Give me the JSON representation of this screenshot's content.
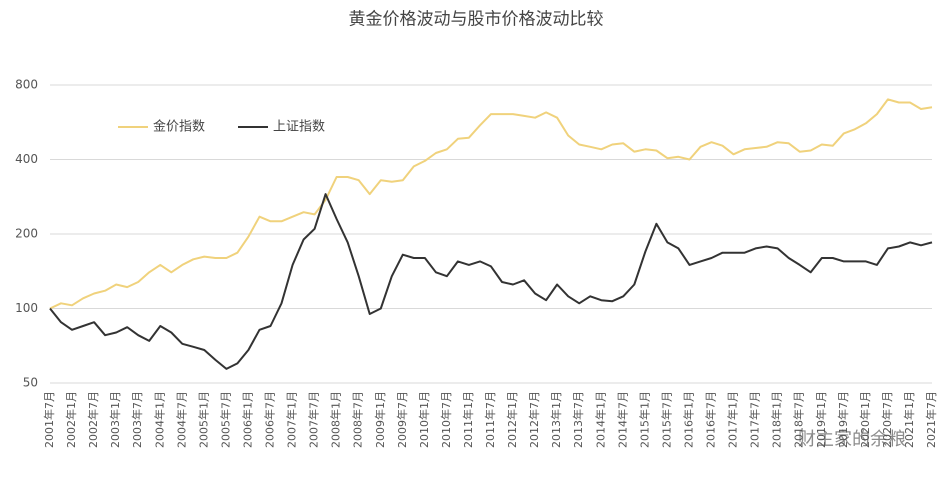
{
  "chart_data": {
    "type": "line",
    "title": "黄金价格波动与股市价格波动比较",
    "categories": [
      "2001年7月",
      null,
      "2002年1月",
      null,
      "2002年7月",
      null,
      "2003年1月",
      null,
      "2003年7月",
      null,
      "2004年1月",
      null,
      "2004年7月",
      null,
      "2005年1月",
      null,
      "2005年7月",
      null,
      "2006年1月",
      null,
      "2006年7月",
      null,
      "2007年1月",
      null,
      "2007年7月",
      null,
      "2008年1月",
      null,
      "2008年7月",
      null,
      "2009年1月",
      null,
      "2009年7月",
      null,
      "2010年1月",
      null,
      "2010年7月",
      null,
      "2011年1月",
      null,
      "2011年7月",
      null,
      "2012年1月",
      null,
      "2012年7月",
      null,
      "2013年1月",
      null,
      "2013年7月",
      null,
      "2014年1月",
      null,
      "2014年7月",
      null,
      "2015年1月",
      null,
      "2015年7月",
      null,
      "2016年1月",
      null,
      "2016年7月",
      null,
      "2017年1月",
      null,
      "2017年7月",
      null,
      "2018年1月",
      null,
      "2018年7月",
      null,
      "2019年1月",
      null,
      "2019年7月",
      null,
      "2020年1月",
      null,
      "2020年7月",
      null,
      "2021年1月",
      null,
      "2021年7月"
    ],
    "series": [
      {
        "name": "金价指数",
        "color": "#f0d27c",
        "values": [
          100,
          105,
          103,
          110,
          115,
          118,
          125,
          122,
          128,
          140,
          150,
          140,
          150,
          158,
          162,
          160,
          160,
          168,
          195,
          235,
          225,
          225,
          235,
          245,
          240,
          275,
          340,
          340,
          330,
          290,
          330,
          325,
          330,
          375,
          395,
          425,
          440,
          485,
          490,
          550,
          610,
          610,
          610,
          600,
          590,
          620,
          590,
          500,
          460,
          450,
          440,
          460,
          465,
          430,
          440,
          435,
          405,
          410,
          400,
          450,
          470,
          455,
          420,
          440,
          445,
          450,
          470,
          465,
          430,
          435,
          460,
          455,
          510,
          530,
          560,
          610,
          700,
          680,
          680,
          640,
          650
        ]
      },
      {
        "name": "上证指数",
        "color": "#333333",
        "values": [
          100,
          88,
          82,
          85,
          88,
          78,
          80,
          84,
          78,
          74,
          85,
          80,
          72,
          70,
          68,
          62,
          57,
          60,
          68,
          82,
          85,
          105,
          150,
          190,
          210,
          290,
          230,
          185,
          135,
          95,
          100,
          135,
          165,
          160,
          160,
          140,
          135,
          155,
          150,
          155,
          148,
          128,
          125,
          130,
          115,
          108,
          125,
          112,
          105,
          112,
          108,
          107,
          112,
          125,
          170,
          220,
          185,
          175,
          150,
          155,
          160,
          168,
          168,
          168,
          175,
          178,
          175,
          160,
          150,
          140,
          160,
          160,
          155,
          155,
          155,
          150,
          175,
          178,
          185,
          180,
          185
        ]
      }
    ],
    "ylim": [
      50,
      800
    ],
    "yticks": [
      50,
      100,
      200,
      400,
      800
    ],
    "log_scale": true,
    "grid": true,
    "legend": "upper left",
    "watermark": "财主家的余粮"
  }
}
